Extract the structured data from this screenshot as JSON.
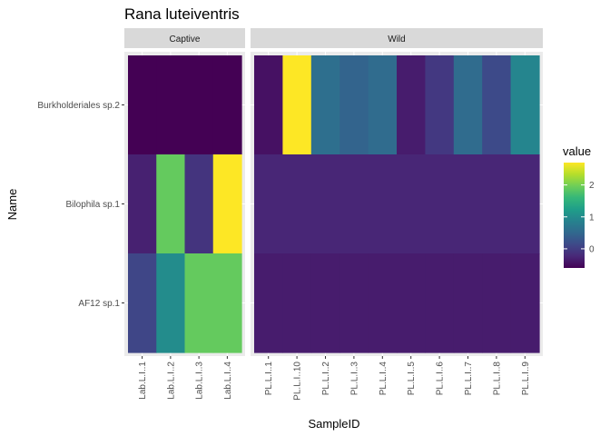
{
  "chart_data": {
    "type": "heatmap",
    "title": "Rana luteiventris",
    "xlabel": "SampleID",
    "ylabel": "Name",
    "rows": [
      "Burkholderiales sp.2",
      "Bilophila sp.1",
      "AF12 sp.1"
    ],
    "facets": [
      {
        "label": "Captive",
        "columns": [
          "Lab.L.I..1",
          "Lab.L.I..2",
          "Lab.L.I..3",
          "Lab.L.I..4"
        ],
        "values": [
          [
            -0.6,
            -0.6,
            -0.6,
            -0.6
          ],
          [
            -0.3,
            1.9,
            -0.1,
            2.7
          ],
          [
            0.1,
            1.0,
            1.9,
            1.9
          ]
        ]
      },
      {
        "label": "Wild",
        "columns": [
          "PL.L.I..1",
          "PL.L.I..10",
          "PL.L.I..2",
          "PL.L.I..3",
          "PL.L.I..4",
          "PL.L.I..5",
          "PL.L.I..6",
          "PL.L.I..7",
          "PL.L.I..8",
          "PL.L.I..9"
        ],
        "values": [
          [
            -0.45,
            2.7,
            0.6,
            0.45,
            0.55,
            -0.35,
            -0.05,
            0.55,
            0.15,
            0.9
          ],
          [
            -0.25,
            -0.25,
            -0.25,
            -0.25,
            -0.25,
            -0.25,
            -0.25,
            -0.25,
            -0.25,
            -0.25
          ],
          [
            -0.35,
            -0.35,
            -0.35,
            -0.35,
            -0.35,
            -0.35,
            -0.35,
            -0.35,
            -0.35,
            -0.35
          ]
        ]
      }
    ],
    "legend": {
      "title": "value",
      "min": -0.6,
      "max": 2.7,
      "breaks": [
        0,
        1,
        2
      ],
      "break_labels": [
        "0",
        "1",
        "2"
      ]
    },
    "colors": {
      "panel_background": "#ebebeb",
      "strip_background": "#d9d9d9",
      "grid": "#ffffff",
      "viridis": [
        "#440154",
        "#482878",
        "#3e4989",
        "#31688e",
        "#26828e",
        "#1f9e89",
        "#35b779",
        "#6ece58",
        "#b5de2b",
        "#fde725"
      ]
    }
  }
}
